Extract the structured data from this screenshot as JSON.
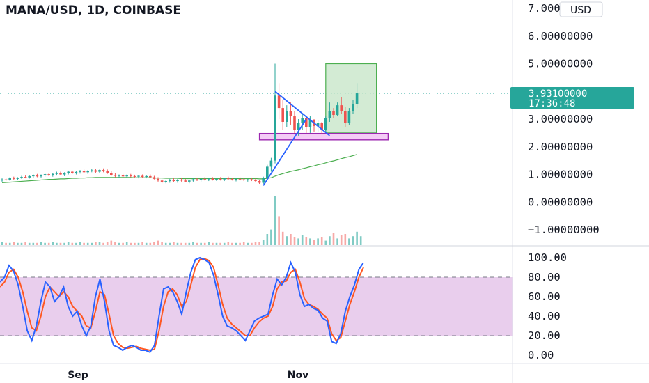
{
  "header": {
    "title": "MANA/USD, 1D, COINBASE"
  },
  "currency_button": {
    "label": "USD"
  },
  "price_badge": {
    "price": "3.93100000",
    "countdown": "17:36:48"
  },
  "colors": {
    "up": "#26a69a",
    "down": "#ef5350",
    "ma": "#4caf50",
    "k_line": "#2962ff",
    "d_line": "#ff5722",
    "band": "#e1bee7",
    "badge": "#26a69a",
    "target_box": "#c8e6c9",
    "support_box": "#f3c6f5"
  },
  "chart_data": [
    {
      "type": "candlestick",
      "title": "MANA/USD, 1D, COINBASE",
      "y_tick_labels": [
        "7.00000000",
        "6.00000000",
        "5.00000000",
        "4.00000000",
        "3.00000000",
        "2.00000000",
        "1.00000000",
        "0.00000000",
        "−1.00000000"
      ],
      "ylim": [
        -1.4,
        7.2
      ],
      "x_tick_labels": [
        "Sep",
        "Nov"
      ],
      "last_price": 3.931,
      "ohlc": [
        [
          0.78,
          0.86,
          0.74,
          0.82
        ],
        [
          0.82,
          0.88,
          0.76,
          0.8
        ],
        [
          0.8,
          0.9,
          0.77,
          0.87
        ],
        [
          0.87,
          0.92,
          0.8,
          0.84
        ],
        [
          0.84,
          0.9,
          0.8,
          0.88
        ],
        [
          0.88,
          0.95,
          0.84,
          0.91
        ],
        [
          0.91,
          0.96,
          0.86,
          0.89
        ],
        [
          0.89,
          0.97,
          0.85,
          0.94
        ],
        [
          0.94,
          1.0,
          0.88,
          0.96
        ],
        [
          0.96,
          1.02,
          0.9,
          0.93
        ],
        [
          0.93,
          1.0,
          0.89,
          0.98
        ],
        [
          0.98,
          1.05,
          0.92,
          1.01
        ],
        [
          1.01,
          1.06,
          0.94,
          0.97
        ],
        [
          0.97,
          1.04,
          0.92,
          1.02
        ],
        [
          1.02,
          1.1,
          0.96,
          1.05
        ],
        [
          1.05,
          1.1,
          0.98,
          1.0
        ],
        [
          1.0,
          1.08,
          0.94,
          1.06
        ],
        [
          1.06,
          1.14,
          1.0,
          1.1
        ],
        [
          1.1,
          1.14,
          1.02,
          1.04
        ],
        [
          1.04,
          1.12,
          1.0,
          1.09
        ],
        [
          1.09,
          1.16,
          1.03,
          1.12
        ],
        [
          1.12,
          1.18,
          1.05,
          1.08
        ],
        [
          1.08,
          1.16,
          1.02,
          1.13
        ],
        [
          1.13,
          1.2,
          1.08,
          1.15
        ],
        [
          1.15,
          1.2,
          1.05,
          1.1
        ],
        [
          1.1,
          1.18,
          1.05,
          1.16
        ],
        [
          1.16,
          1.22,
          1.08,
          1.12
        ],
        [
          1.12,
          1.18,
          1.02,
          1.06
        ],
        [
          1.06,
          1.12,
          0.95,
          0.98
        ],
        [
          0.98,
          1.04,
          0.9,
          0.95
        ],
        [
          0.95,
          1.0,
          0.88,
          0.97
        ],
        [
          0.97,
          1.02,
          0.9,
          0.93
        ],
        [
          0.93,
          1.0,
          0.88,
          0.96
        ],
        [
          0.96,
          1.02,
          0.9,
          0.94
        ],
        [
          0.94,
          0.99,
          0.88,
          0.92
        ],
        [
          0.92,
          0.98,
          0.86,
          0.95
        ],
        [
          0.95,
          1.0,
          0.88,
          0.91
        ],
        [
          0.91,
          0.97,
          0.86,
          0.94
        ],
        [
          0.94,
          1.0,
          0.88,
          0.9
        ],
        [
          0.9,
          0.95,
          0.82,
          0.84
        ],
        [
          0.84,
          0.9,
          0.74,
          0.78
        ],
        [
          0.78,
          0.82,
          0.68,
          0.72
        ],
        [
          0.72,
          0.8,
          0.68,
          0.76
        ],
        [
          0.76,
          0.84,
          0.7,
          0.8
        ],
        [
          0.8,
          0.86,
          0.72,
          0.76
        ],
        [
          0.76,
          0.84,
          0.7,
          0.81
        ],
        [
          0.81,
          0.88,
          0.74,
          0.78
        ],
        [
          0.78,
          0.84,
          0.72,
          0.74
        ],
        [
          0.74,
          0.8,
          0.68,
          0.78
        ],
        [
          0.78,
          0.86,
          0.74,
          0.82
        ],
        [
          0.82,
          0.88,
          0.76,
          0.8
        ],
        [
          0.8,
          0.86,
          0.74,
          0.84
        ],
        [
          0.84,
          0.9,
          0.78,
          0.82
        ],
        [
          0.82,
          0.88,
          0.76,
          0.85
        ],
        [
          0.85,
          0.9,
          0.78,
          0.81
        ],
        [
          0.81,
          0.86,
          0.76,
          0.84
        ],
        [
          0.84,
          0.9,
          0.78,
          0.82
        ],
        [
          0.82,
          0.88,
          0.76,
          0.86
        ],
        [
          0.86,
          0.92,
          0.8,
          0.83
        ],
        [
          0.83,
          0.88,
          0.78,
          0.8
        ],
        [
          0.8,
          0.86,
          0.75,
          0.84
        ],
        [
          0.84,
          0.9,
          0.78,
          0.82
        ],
        [
          0.82,
          0.87,
          0.76,
          0.79
        ],
        [
          0.79,
          0.84,
          0.74,
          0.82
        ],
        [
          0.82,
          0.86,
          0.76,
          0.8
        ],
        [
          0.8,
          0.85,
          0.72,
          0.76
        ],
        [
          0.76,
          0.8,
          0.66,
          0.7
        ],
        [
          0.7,
          0.92,
          0.66,
          0.88
        ],
        [
          0.88,
          1.35,
          0.85,
          1.28
        ],
        [
          1.28,
          1.6,
          1.1,
          1.5
        ],
        [
          1.5,
          5.0,
          1.4,
          3.85
        ],
        [
          3.85,
          4.3,
          3.0,
          3.4
        ],
        [
          3.4,
          3.7,
          2.6,
          2.9
        ],
        [
          2.9,
          3.5,
          2.7,
          3.3
        ],
        [
          3.3,
          3.6,
          2.8,
          3.1
        ],
        [
          3.1,
          3.3,
          2.5,
          2.6
        ],
        [
          2.6,
          3.0,
          2.4,
          2.85
        ],
        [
          2.85,
          3.2,
          2.6,
          3.05
        ],
        [
          3.05,
          3.1,
          2.5,
          2.7
        ],
        [
          2.7,
          3.1,
          2.5,
          2.95
        ],
        [
          2.95,
          3.0,
          2.55,
          2.75
        ],
        [
          2.75,
          2.95,
          2.55,
          2.85
        ],
        [
          2.85,
          2.9,
          2.45,
          2.6
        ],
        [
          2.6,
          3.1,
          2.5,
          3.05
        ],
        [
          3.05,
          3.6,
          2.9,
          3.3
        ],
        [
          3.3,
          3.4,
          3.05,
          3.15
        ],
        [
          3.15,
          3.6,
          3.1,
          3.5
        ],
        [
          3.5,
          3.8,
          3.2,
          3.3
        ],
        [
          3.3,
          3.45,
          2.7,
          2.85
        ],
        [
          2.85,
          3.4,
          2.8,
          3.3
        ],
        [
          3.3,
          3.7,
          3.2,
          3.55
        ],
        [
          3.55,
          4.3,
          3.4,
          3.93
        ]
      ],
      "moving_average": [
        0.7,
        0.71,
        0.72,
        0.73,
        0.74,
        0.75,
        0.76,
        0.77,
        0.78,
        0.79,
        0.8,
        0.81,
        0.82,
        0.82,
        0.83,
        0.84,
        0.84,
        0.85,
        0.86,
        0.86,
        0.87,
        0.87,
        0.88,
        0.88,
        0.89,
        0.89,
        0.89,
        0.89,
        0.89,
        0.89,
        0.89,
        0.89,
        0.89,
        0.89,
        0.88,
        0.88,
        0.88,
        0.88,
        0.88,
        0.87,
        0.87,
        0.87,
        0.86,
        0.86,
        0.86,
        0.86,
        0.85,
        0.85,
        0.85,
        0.85,
        0.85,
        0.85,
        0.85,
        0.85,
        0.85,
        0.85,
        0.85,
        0.85,
        0.85,
        0.85,
        0.85,
        0.85,
        0.85,
        0.85,
        0.85,
        0.85,
        0.84,
        0.84,
        0.86,
        0.88,
        0.94,
        0.99,
        1.03,
        1.07,
        1.11,
        1.14,
        1.17,
        1.21,
        1.24,
        1.28,
        1.31,
        1.35,
        1.38,
        1.42,
        1.46,
        1.49,
        1.53,
        1.57,
        1.61,
        1.64,
        1.68,
        1.72
      ],
      "volume": [
        3,
        2,
        2,
        3,
        2,
        2,
        3,
        2,
        2,
        2,
        3,
        2,
        2,
        3,
        2,
        2,
        2,
        3,
        2,
        2,
        3,
        2,
        2,
        2,
        3,
        3,
        2,
        3,
        4,
        3,
        2,
        2,
        3,
        2,
        2,
        2,
        3,
        2,
        2,
        3,
        4,
        3,
        2,
        2,
        3,
        2,
        2,
        2,
        2,
        3,
        2,
        2,
        2,
        3,
        2,
        2,
        2,
        2,
        3,
        2,
        2,
        2,
        3,
        2,
        2,
        3,
        3,
        5,
        10,
        14,
        44,
        26,
        12,
        8,
        10,
        7,
        6,
        9,
        7,
        6,
        5,
        6,
        7,
        4,
        8,
        11,
        6,
        9,
        10,
        6,
        8,
        12,
        8
      ],
      "annotations": [
        {
          "type": "target-rectangle",
          "x_from": 83,
          "x_to": 96,
          "y_from": 2.5,
          "y_to": 5.0
        },
        {
          "type": "support-rectangle",
          "x_from": 66,
          "x_to": 99,
          "y_from": 2.25,
          "y_to": 2.48
        },
        {
          "type": "trendline",
          "from": [
            70,
            4.0
          ],
          "to": [
            84,
            2.4
          ]
        },
        {
          "type": "trendline",
          "from": [
            67,
            0.6
          ],
          "to": [
            78,
            3.0
          ]
        }
      ]
    },
    {
      "type": "line",
      "indicator": "stochastic",
      "y_tick_labels": [
        "100.00",
        "80.00",
        "60.00",
        "40.00",
        "20.00",
        "0.00"
      ],
      "ylim": [
        -10,
        110
      ],
      "band": [
        20,
        80
      ],
      "series": [
        {
          "values": [
            75,
            80,
            92,
            86,
            72,
            50,
            25,
            15,
            30,
            55,
            75,
            70,
            55,
            60,
            70,
            50,
            40,
            45,
            30,
            20,
            30,
            60,
            78,
            55,
            25,
            10,
            8,
            5,
            8,
            10,
            8,
            5,
            5,
            3,
            10,
            40,
            68,
            70,
            65,
            55,
            42,
            65,
            85,
            98,
            100,
            98,
            95,
            82,
            62,
            40,
            30,
            28,
            25,
            20,
            15,
            25,
            35,
            38,
            40,
            42,
            62,
            78,
            72,
            80,
            95,
            85,
            62,
            50,
            52,
            48,
            46,
            38,
            35,
            14,
            12,
            22,
            45,
            60,
            72,
            88,
            95
          ]
        },
        {
          "values": [
            70,
            75,
            85,
            88,
            80,
            65,
            45,
            28,
            25,
            40,
            60,
            70,
            65,
            60,
            65,
            60,
            50,
            45,
            40,
            30,
            28,
            45,
            65,
            62,
            42,
            20,
            12,
            8,
            7,
            8,
            9,
            7,
            6,
            5,
            6,
            25,
            50,
            65,
            68,
            62,
            50,
            55,
            72,
            90,
            98,
            99,
            97,
            90,
            72,
            52,
            38,
            32,
            28,
            24,
            20,
            20,
            28,
            34,
            38,
            40,
            50,
            68,
            75,
            76,
            85,
            88,
            75,
            58,
            52,
            50,
            47,
            42,
            38,
            22,
            15,
            18,
            35,
            52,
            65,
            80,
            90
          ]
        }
      ]
    }
  ]
}
